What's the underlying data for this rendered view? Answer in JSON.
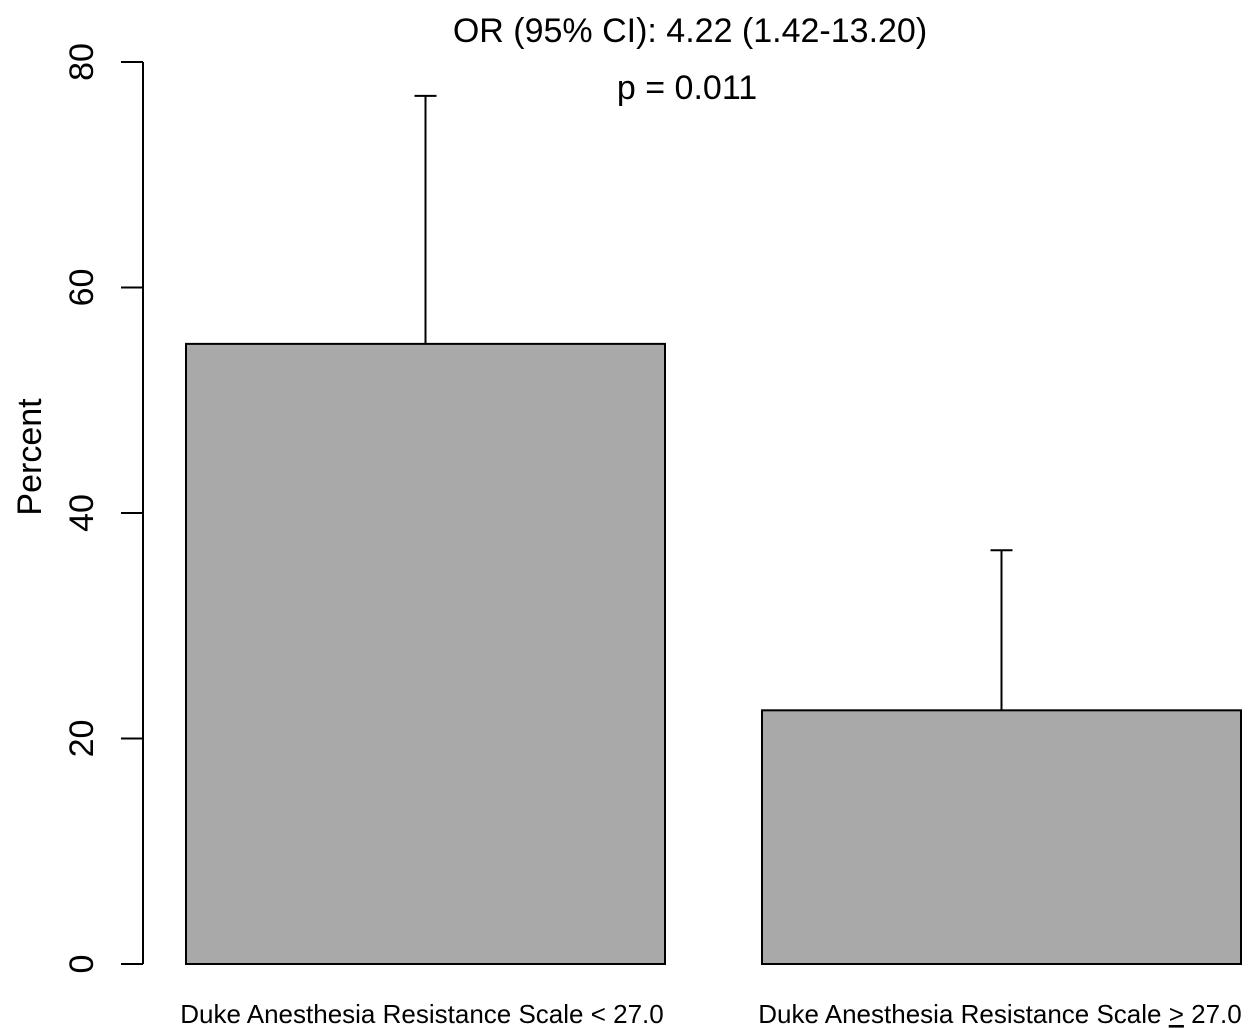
{
  "chart_data": {
    "type": "bar",
    "title": "",
    "annotations": [
      "OR (95% CI): 4.22 (1.42-13.20)",
      "p = 0.011"
    ],
    "xlabel": "",
    "ylabel": "Percent",
    "ylim": [
      0,
      80
    ],
    "yticks": [
      0,
      20,
      40,
      60,
      80
    ],
    "categories": [
      "Duke Anesthesia Resistance Scale < 27.0",
      "Duke Anesthesia Resistance Scale ≥ 27.0"
    ],
    "category_display": [
      {
        "before": "Duke Anesthesia Resistance Scale < 27.0",
        "underlined": "",
        "after": ""
      },
      {
        "before": "Duke Anesthesia Resistance Scale ",
        "underlined": ">",
        "after": " 27.0"
      }
    ],
    "values": [
      55.0,
      22.5
    ],
    "error_upper": [
      77.0,
      36.7
    ],
    "bar_color": "#a9a9a9",
    "grid": false,
    "legend": "none"
  }
}
